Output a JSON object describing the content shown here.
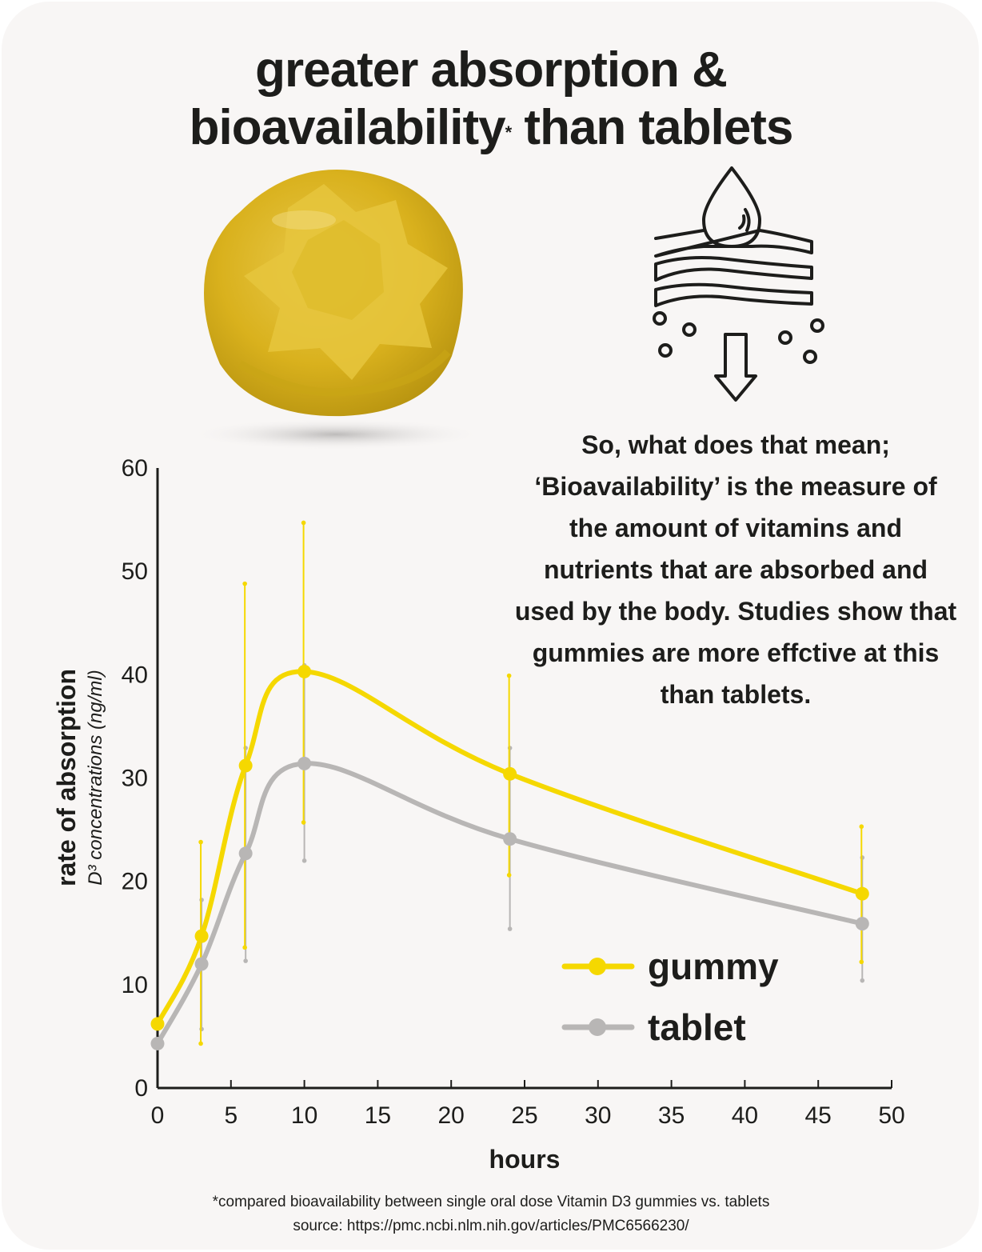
{
  "title": {
    "line1": "greater absorption &",
    "line2_main": "bioavailability",
    "line2_mark": "*",
    "line2_end": " than tablets"
  },
  "explanation": "So, what does that mean; ‘Bioavailability’ is the measure of the amount of vitamins and nutrients that are absorbed and used by the body. Studies show that gummies are more effctive at this than tablets.",
  "footnote": {
    "line1": "*compared bioavailability between single oral dose Vitamin D3 gummies vs. tablets",
    "line2": "source: https://pmc.ncbi.nlm.nih.gov/articles/PMC6566230/"
  },
  "icons": {
    "product_image": "gummy-vitamin-image",
    "absorption": "absorption-layers-icon"
  },
  "colors": {
    "gummy": "#f5d800",
    "tablet": "#b8b6b5",
    "gummy_image": "#dcb41e",
    "text": "#1d1d1b",
    "background": "#f8f6f5"
  },
  "chart_data": {
    "type": "line",
    "xlabel": "hours",
    "ylabel": "rate of absorption",
    "ylabel_sub": "D³ concentrations (ng/ml)",
    "xlim": [
      0,
      50
    ],
    "ylim": [
      0,
      60
    ],
    "x_ticks": [
      0,
      5,
      10,
      15,
      20,
      25,
      30,
      35,
      40,
      45,
      50
    ],
    "y_ticks": [
      0,
      10,
      20,
      30,
      40,
      50,
      60
    ],
    "grid": false,
    "legend_position": "bottom-right",
    "x": [
      0,
      3,
      6,
      10,
      24,
      48
    ],
    "series": [
      {
        "name": "gummy",
        "color": "#f5d800",
        "values": [
          6.2,
          14.7,
          31.2,
          40.3,
          30.4,
          18.8
        ],
        "error_low": [
          null,
          4.3,
          13.6,
          25.7,
          20.6,
          12.2
        ],
        "error_high": [
          null,
          23.8,
          48.8,
          54.7,
          39.9,
          25.3
        ]
      },
      {
        "name": "tablet",
        "color": "#b8b6b5",
        "values": [
          4.3,
          12.0,
          22.7,
          31.4,
          24.1,
          15.9
        ],
        "error_low": [
          null,
          5.7,
          12.3,
          22.0,
          15.4,
          10.4
        ],
        "error_high": [
          null,
          18.2,
          32.9,
          40.9,
          32.9,
          22.3
        ]
      }
    ]
  }
}
